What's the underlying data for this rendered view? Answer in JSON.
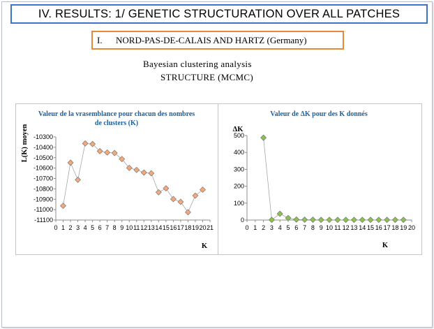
{
  "header": {
    "title": "IV. RESULTS: 1/ GENETIC STRUCTURATION OVER ALL PATCHES"
  },
  "subtitle": {
    "number": "I.",
    "text": "NORD-PAS-DE-CALAIS AND HARTZ (Germany)"
  },
  "method": {
    "line1": "Bayesian clustering  analysis",
    "line2": "STRUCTURE (MCMC)"
  },
  "chart_data": [
    {
      "type": "line",
      "title": "Valeur de la vrasemblance pour chacun des nombres de clusters (K)",
      "title_lines": [
        "Valeur de la vrasemblance pour chacun des nombres",
        "de clusters (K)"
      ],
      "xlabel": "K",
      "ylabel": "L(K) moyen",
      "xlim": [
        0,
        21
      ],
      "ylim": [
        -11100,
        -10300
      ],
      "x_ticks": [
        0,
        1,
        2,
        3,
        4,
        5,
        6,
        7,
        8,
        9,
        10,
        11,
        12,
        13,
        14,
        15,
        16,
        17,
        18,
        19,
        20,
        21
      ],
      "y_ticks": [
        -10300,
        -10400,
        -10500,
        -10600,
        -10700,
        -10800,
        -10900,
        -11000,
        -11100
      ],
      "grid": false,
      "marker": "diamond",
      "marker_color": "#f4a77a",
      "line_color": "#a6a6a6",
      "x": [
        1,
        2,
        3,
        4,
        5,
        6,
        7,
        8,
        9,
        10,
        11,
        12,
        13,
        14,
        15,
        16,
        17,
        18,
        19,
        20
      ],
      "y": [
        -10963,
        -10548,
        -10713,
        -10363,
        -10368,
        -10437,
        -10450,
        -10455,
        -10513,
        -10598,
        -10618,
        -10643,
        -10650,
        -10833,
        -10795,
        -10898,
        -10925,
        -11025,
        -10865,
        -10808
      ]
    },
    {
      "type": "line",
      "title": "Valeur de ΔK pour des K donnés",
      "title_lines": [
        "Valeur de ΔK pour des K donnés"
      ],
      "xlabel": "K",
      "ylabel": "ΔK",
      "xlim": [
        0,
        20
      ],
      "ylim": [
        0,
        500
      ],
      "x_ticks": [
        0,
        1,
        2,
        3,
        4,
        5,
        6,
        7,
        8,
        9,
        10,
        11,
        12,
        13,
        14,
        15,
        16,
        17,
        18,
        19,
        20
      ],
      "y_ticks": [
        0,
        100,
        200,
        300,
        400,
        500
      ],
      "grid": false,
      "marker": "diamond",
      "marker_color": "#8cc152",
      "line_color": "#a6a6a6",
      "x": [
        2,
        3,
        4,
        5,
        6,
        7,
        8,
        9,
        10,
        11,
        12,
        13,
        14,
        15,
        16,
        17,
        18,
        19
      ],
      "y": [
        487,
        1,
        37,
        12,
        3,
        2,
        2,
        1,
        1,
        1,
        1,
        1,
        1,
        1,
        1,
        1,
        1,
        1
      ]
    }
  ]
}
